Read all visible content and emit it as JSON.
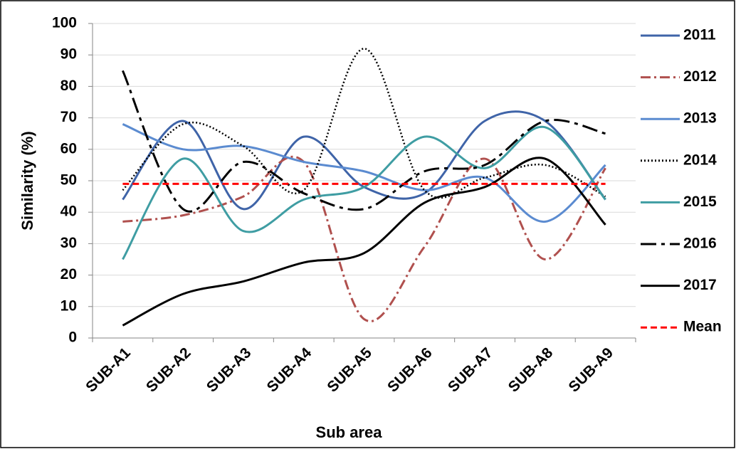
{
  "chart_data": {
    "type": "line",
    "x_label": "Sub area",
    "y_label": "Similarity (%)",
    "categories": [
      "SUB-A1",
      "SUB-A2",
      "SUB-A3",
      "SUB-A4",
      "SUB-A5",
      "SUB-A6",
      "SUB-A7",
      "SUB-A8",
      "SUB-A9"
    ],
    "ylim": [
      0,
      100
    ],
    "yticks": [
      0,
      10,
      20,
      30,
      40,
      50,
      60,
      70,
      80,
      90,
      100
    ],
    "grid": true,
    "smooth": true,
    "legend": "right",
    "series": [
      {
        "name": "2011",
        "color": "#3f64a8",
        "dash": "solid",
        "values": [
          44,
          69,
          41,
          64,
          48,
          46,
          69,
          69,
          44
        ]
      },
      {
        "name": "2012",
        "color": "#b0504e",
        "dash": "dashdot",
        "values": [
          37,
          39,
          45,
          56,
          6,
          29,
          57,
          25,
          54
        ]
      },
      {
        "name": "2013",
        "color": "#5b8bd0",
        "dash": "solid",
        "values": [
          68,
          60,
          61,
          56,
          53,
          47,
          51,
          37,
          55
        ]
      },
      {
        "name": "2014",
        "color": "#000000",
        "dash": "dotted",
        "values": [
          47,
          68,
          61,
          47,
          92,
          47,
          51,
          55,
          45
        ]
      },
      {
        "name": "2015",
        "color": "#3f9da3",
        "dash": "solid",
        "values": [
          25,
          57,
          34,
          44,
          48,
          64,
          54,
          67,
          44
        ]
      },
      {
        "name": "2016",
        "color": "#000000",
        "dash": "longdashdot",
        "values": [
          85,
          41,
          56,
          46,
          41,
          53,
          55,
          69,
          65
        ]
      },
      {
        "name": "2017",
        "color": "#000000",
        "dash": "solid",
        "values": [
          4,
          14,
          18,
          24,
          27,
          43,
          48,
          57,
          36
        ]
      },
      {
        "name": "Mean",
        "color": "#ff0000",
        "dash": "dashed",
        "values": [
          49,
          49,
          49,
          49,
          49,
          49,
          49,
          49,
          49
        ]
      }
    ]
  }
}
